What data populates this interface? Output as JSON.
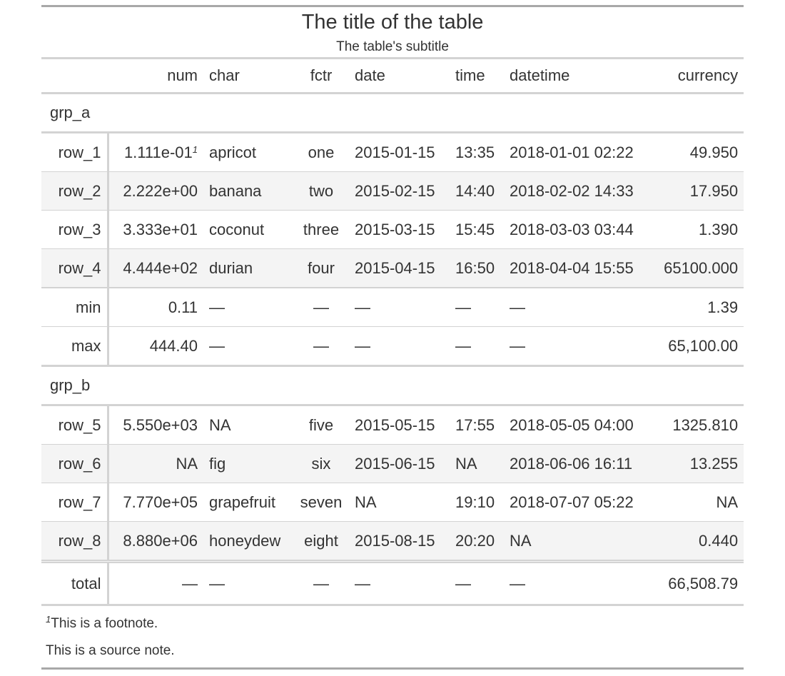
{
  "title": "The title of the table",
  "subtitle": "The table's subtitle",
  "columns": [
    {
      "key": "stub",
      "label": ""
    },
    {
      "key": "num",
      "label": "num"
    },
    {
      "key": "char",
      "label": "char"
    },
    {
      "key": "fctr",
      "label": "fctr"
    },
    {
      "key": "date",
      "label": "date"
    },
    {
      "key": "time",
      "label": "time"
    },
    {
      "key": "datetime",
      "label": "datetime"
    },
    {
      "key": "currency",
      "label": "currency"
    }
  ],
  "groups": [
    {
      "name": "grp_a",
      "rows": [
        {
          "label": "row_1",
          "num": "1.111e-01",
          "num_mark": "1",
          "char": "apricot",
          "fctr": "one",
          "date": "2015-01-15",
          "time": "13:35",
          "datetime": "2018-01-01 02:22",
          "currency": "49.950"
        },
        {
          "label": "row_2",
          "num": "2.222e+00",
          "char": "banana",
          "fctr": "two",
          "date": "2015-02-15",
          "time": "14:40",
          "datetime": "2018-02-02 14:33",
          "currency": "17.950"
        },
        {
          "label": "row_3",
          "num": "3.333e+01",
          "char": "coconut",
          "fctr": "three",
          "date": "2015-03-15",
          "time": "15:45",
          "datetime": "2018-03-03 03:44",
          "currency": "1.390"
        },
        {
          "label": "row_4",
          "num": "4.444e+02",
          "char": "durian",
          "fctr": "four",
          "date": "2015-04-15",
          "time": "16:50",
          "datetime": "2018-04-04 15:55",
          "currency": "65100.000"
        }
      ],
      "summary": [
        {
          "label": "min",
          "num": "0.11",
          "char": "—",
          "fctr": "—",
          "date": "—",
          "time": "—",
          "datetime": "—",
          "currency": "1.39"
        },
        {
          "label": "max",
          "num": "444.40",
          "char": "—",
          "fctr": "—",
          "date": "—",
          "time": "—",
          "datetime": "—",
          "currency": "65,100.00"
        }
      ]
    },
    {
      "name": "grp_b",
      "rows": [
        {
          "label": "row_5",
          "num": "5.550e+03",
          "char": "NA",
          "fctr": "five",
          "date": "2015-05-15",
          "time": "17:55",
          "datetime": "2018-05-05 04:00",
          "currency": "1325.810"
        },
        {
          "label": "row_6",
          "num": "NA",
          "char": "fig",
          "fctr": "six",
          "date": "2015-06-15",
          "time": "NA",
          "datetime": "2018-06-06 16:11",
          "currency": "13.255"
        },
        {
          "label": "row_7",
          "num": "7.770e+05",
          "char": "grapefruit",
          "fctr": "seven",
          "date": "NA",
          "time": "19:10",
          "datetime": "2018-07-07 05:22",
          "currency": "NA"
        },
        {
          "label": "row_8",
          "num": "8.880e+06",
          "char": "honeydew",
          "fctr": "eight",
          "date": "2015-08-15",
          "time": "20:20",
          "datetime": "NA",
          "currency": "0.440"
        }
      ],
      "summary": []
    }
  ],
  "grand_summary": {
    "label": "total",
    "num": "—",
    "char": "—",
    "fctr": "—",
    "date": "—",
    "time": "—",
    "datetime": "—",
    "currency": "66,508.79"
  },
  "footnote": {
    "mark": "1",
    "text": "This is a footnote."
  },
  "source_note": "This is a source note."
}
